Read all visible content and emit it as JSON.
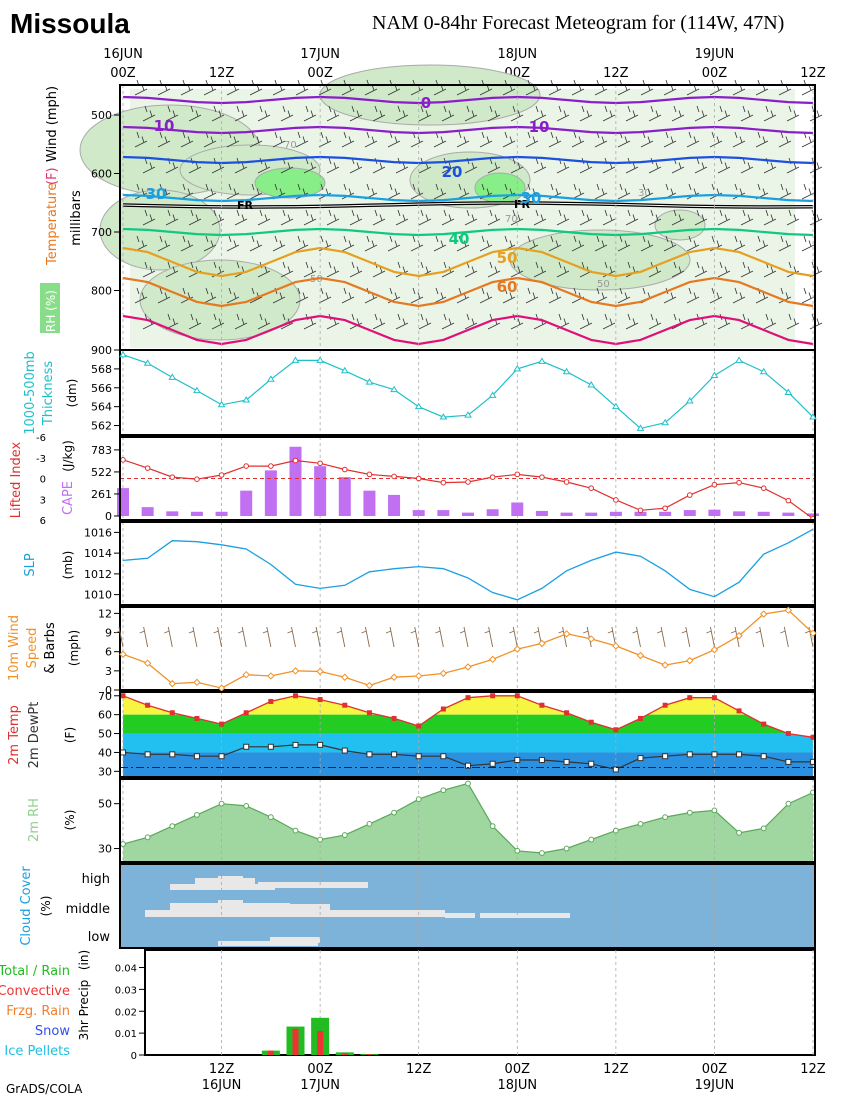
{
  "header": {
    "station": "Missoula",
    "title": "NAM 0-84hr Forecast Meteogram for (114W, 47N)",
    "credit": "GrADS/COLA"
  },
  "time_axis": {
    "top_labels": [
      {
        "h": 0,
        "day": "16JUN",
        "hr": "00Z"
      },
      {
        "h": 12,
        "day": "",
        "hr": "12Z"
      },
      {
        "h": 24,
        "day": "17JUN",
        "hr": "00Z"
      },
      {
        "h": 36,
        "day": "",
        "hr": "12Z"
      },
      {
        "h": 48,
        "day": "18JUN",
        "hr": "00Z"
      },
      {
        "h": 60,
        "day": "",
        "hr": "12Z"
      },
      {
        "h": 72,
        "day": "19JUN",
        "hr": "00Z"
      },
      {
        "h": 84,
        "day": "",
        "hr": "12Z"
      }
    ],
    "bottom_labels": [
      {
        "h": 12,
        "hr": "12Z",
        "day": "16JUN"
      },
      {
        "h": 24,
        "hr": "00Z",
        "day": "17JUN"
      },
      {
        "h": 36,
        "hr": "12Z",
        "day": ""
      },
      {
        "h": 48,
        "hr": "00Z",
        "day": "18JUN"
      },
      {
        "h": 60,
        "hr": "12Z",
        "day": ""
      },
      {
        "h": 72,
        "hr": "00Z",
        "day": "19JUN"
      },
      {
        "h": 84,
        "hr": "12Z",
        "day": ""
      }
    ]
  },
  "colors": {
    "thickness": "#20c0c8",
    "lifted_index": "#e03030",
    "cape": "#c070f0",
    "slp": "#1aa0e0",
    "wind10m": "#f0922a",
    "temp_line": "#e03030",
    "temp_fill_yellow": "#f5f542",
    "temp_fill_green": "#22cc22",
    "temp_fill_cyan": "#22c0f0",
    "temp_fill_blue": "#2a90e0",
    "rh_fill": "#8fd08f",
    "rh_line": "#5aa85a",
    "cloud_bg": "#7db3d9",
    "cloud_fill": "#e8e8e8",
    "total_rain": "#22bb22",
    "convective": "#ee3333",
    "frzg_rain": "#f08030",
    "snow": "#3050f0",
    "ice_pellets": "#20c0e0"
  },
  "chart_data": [
    {
      "type": "contour",
      "panel": "upper-air",
      "ylabel": "millibars",
      "y_ticks": [
        500,
        600,
        700,
        800,
        900
      ],
      "side_labels": [
        "Temperature",
        "(F)",
        "Wind (mph)",
        "RH (%)"
      ],
      "isotherm_labels": [
        "0",
        "10",
        "20",
        "30",
        "40",
        "50",
        "60"
      ],
      "freezing_label": "FR",
      "rh_labels": [
        "70",
        "50",
        "30"
      ]
    },
    {
      "type": "line",
      "panel": "thickness",
      "title": "1000-500mb Thickness",
      "ylabel": "(dm)",
      "ylim": [
        561,
        570
      ],
      "y_ticks": [
        562,
        564,
        566,
        568
      ],
      "x": [
        0,
        3,
        6,
        9,
        12,
        15,
        18,
        21,
        24,
        27,
        30,
        33,
        36,
        39,
        42,
        45,
        48,
        51,
        54,
        57,
        60,
        63,
        66,
        69,
        72,
        75,
        78,
        81,
        84
      ],
      "values": [
        569.5,
        568.6,
        567.1,
        565.7,
        564.2,
        564.7,
        566.9,
        568.9,
        568.9,
        567.8,
        566.6,
        565.8,
        564.0,
        562.9,
        563.1,
        565.2,
        568.0,
        568.8,
        567.7,
        566.3,
        564.0,
        561.7,
        562.3,
        564.6,
        567.3,
        568.9,
        567.7,
        565.5,
        562.9
      ]
    },
    {
      "type": "bar+line",
      "panel": "stability",
      "title": "Lifted Index / CAPE",
      "li_label": "Lifted Index",
      "cape_label": "CAPE",
      "cape_unit": "(J/kg)",
      "li_ticks": [
        -6,
        -3,
        0,
        3,
        6
      ],
      "cape_ticks": [
        0,
        261,
        522,
        783
      ],
      "x": [
        0,
        3,
        6,
        9,
        12,
        15,
        18,
        21,
        24,
        27,
        30,
        33,
        36,
        39,
        42,
        45,
        48,
        51,
        54,
        57,
        60,
        63,
        66,
        69,
        72,
        75,
        78,
        81,
        84
      ],
      "lifted_index": [
        -2.7,
        -1.5,
        -0.2,
        0.1,
        -0.5,
        -1.8,
        -1.8,
        -2.6,
        -2.2,
        -1.3,
        -0.6,
        -0.3,
        0,
        0.6,
        0.5,
        -0.2,
        -0.6,
        -0.2,
        0.5,
        1.4,
        3.1,
        4.6,
        4.3,
        2.4,
        0.9,
        0.6,
        1.4,
        3.2,
        5.8
      ],
      "cape": [
        330,
        105,
        55,
        50,
        50,
        300,
        540,
        820,
        590,
        460,
        300,
        250,
        70,
        70,
        40,
        80,
        160,
        60,
        40,
        40,
        50,
        50,
        50,
        70,
        75,
        55,
        50,
        40,
        30
      ],
      "li_zero_label": "0"
    },
    {
      "type": "line",
      "panel": "slp",
      "title": "SLP",
      "ylabel": "(mb)",
      "ylim": [
        1009,
        1017
      ],
      "y_ticks": [
        1010,
        1012,
        1014,
        1016
      ],
      "x": [
        0,
        3,
        6,
        9,
        12,
        15,
        18,
        21,
        24,
        27,
        30,
        33,
        36,
        39,
        42,
        45,
        48,
        51,
        54,
        57,
        60,
        63,
        66,
        69,
        72,
        75,
        78,
        81,
        84
      ],
      "values": [
        1013.3,
        1013.5,
        1015.2,
        1015.1,
        1014.8,
        1014.4,
        1012.9,
        1011.0,
        1010.6,
        1010.9,
        1012.2,
        1012.5,
        1012.7,
        1012.5,
        1011.6,
        1010.2,
        1009.5,
        1010.6,
        1012.3,
        1013.3,
        1014.1,
        1013.7,
        1012.3,
        1010.5,
        1009.8,
        1011.2,
        1013.9,
        1015.0,
        1016.3
      ]
    },
    {
      "type": "line",
      "panel": "wind10m",
      "title": "10m Wind Speed & Barbs",
      "lines": [
        "10m Wind",
        "Speed",
        "& Barbs"
      ],
      "ylabel": "(mph)",
      "ylim": [
        0,
        13
      ],
      "y_ticks": [
        0,
        3,
        6,
        9,
        12
      ],
      "x": [
        0,
        3,
        6,
        9,
        12,
        15,
        18,
        21,
        24,
        27,
        30,
        33,
        36,
        39,
        42,
        45,
        48,
        51,
        54,
        57,
        60,
        63,
        66,
        69,
        72,
        75,
        78,
        81,
        84
      ],
      "values": [
        5.6,
        4.2,
        1.0,
        1.2,
        0.3,
        2.4,
        2.2,
        3.0,
        2.9,
        2.0,
        0.7,
        2.0,
        2.2,
        2.6,
        3.6,
        4.8,
        6.4,
        7.3,
        8.8,
        8.0,
        6.9,
        5.4,
        3.9,
        4.6,
        6.3,
        8.5,
        11.9,
        12.5,
        8.9
      ]
    },
    {
      "type": "area",
      "panel": "temperature",
      "title": "2m Temp",
      "subtitle": "2m DewPt",
      "ylabel": "(F)",
      "ylim": [
        27,
        72
      ],
      "y_ticks": [
        30,
        40,
        50,
        60,
        70
      ],
      "x": [
        0,
        3,
        6,
        9,
        12,
        15,
        18,
        21,
        24,
        27,
        30,
        33,
        36,
        39,
        42,
        45,
        48,
        51,
        54,
        57,
        60,
        63,
        66,
        69,
        72,
        75,
        78,
        81,
        84
      ],
      "temp": [
        70,
        65,
        61,
        58,
        55,
        61,
        67,
        70,
        68,
        65,
        61,
        58,
        54,
        63,
        69,
        70,
        70,
        65,
        61,
        56,
        52,
        58,
        65,
        69,
        69,
        62,
        55,
        50,
        48
      ],
      "dewpt": [
        40,
        39,
        39,
        38,
        38,
        43,
        43,
        44,
        44,
        41,
        39,
        39,
        38,
        38,
        33,
        34,
        36,
        36,
        35,
        34,
        31,
        37,
        38,
        39,
        39,
        39,
        38,
        35,
        35
      ],
      "ref_line": 32
    },
    {
      "type": "area",
      "panel": "rh",
      "title": "2m RH",
      "ylabel": "(%)",
      "ylim": [
        24,
        61
      ],
      "y_ticks": [
        30,
        50
      ],
      "x": [
        0,
        3,
        6,
        9,
        12,
        15,
        18,
        21,
        24,
        27,
        30,
        33,
        36,
        39,
        42,
        45,
        48,
        51,
        54,
        57,
        60,
        63,
        66,
        69,
        72,
        75,
        78,
        81,
        84
      ],
      "values": [
        32,
        35,
        40,
        45,
        50,
        49,
        44,
        38,
        34,
        36,
        41,
        46,
        52,
        56,
        59,
        40,
        29,
        28,
        30,
        34,
        38,
        41,
        44,
        46,
        47,
        37,
        39,
        50,
        55
      ]
    },
    {
      "type": "heatmap",
      "panel": "cloud",
      "title": "Cloud Cover",
      "ylabel": "(%)",
      "levels": [
        "high",
        "middle",
        "low"
      ]
    },
    {
      "type": "bar",
      "panel": "precip",
      "title": "3hr Precip",
      "ylabel": "(in)",
      "ylim": [
        0,
        0.048
      ],
      "y_ticks": [
        0,
        0.01,
        0.02,
        0.03,
        0.04
      ],
      "y_tick_labels": [
        "0",
        "0.01",
        "0.02",
        "0.03",
        "0.04"
      ],
      "legend": [
        "Total / Rain",
        "Convective",
        "Frzg. Rain",
        "Snow",
        "Ice Pellets"
      ],
      "x": [
        18,
        21,
        24,
        27,
        30
      ],
      "total": [
        0.002,
        0.013,
        0.017,
        0.0012,
        0.0004
      ],
      "convective": [
        0.002,
        0.012,
        0.011,
        0.0008,
        0.0004
      ]
    }
  ]
}
